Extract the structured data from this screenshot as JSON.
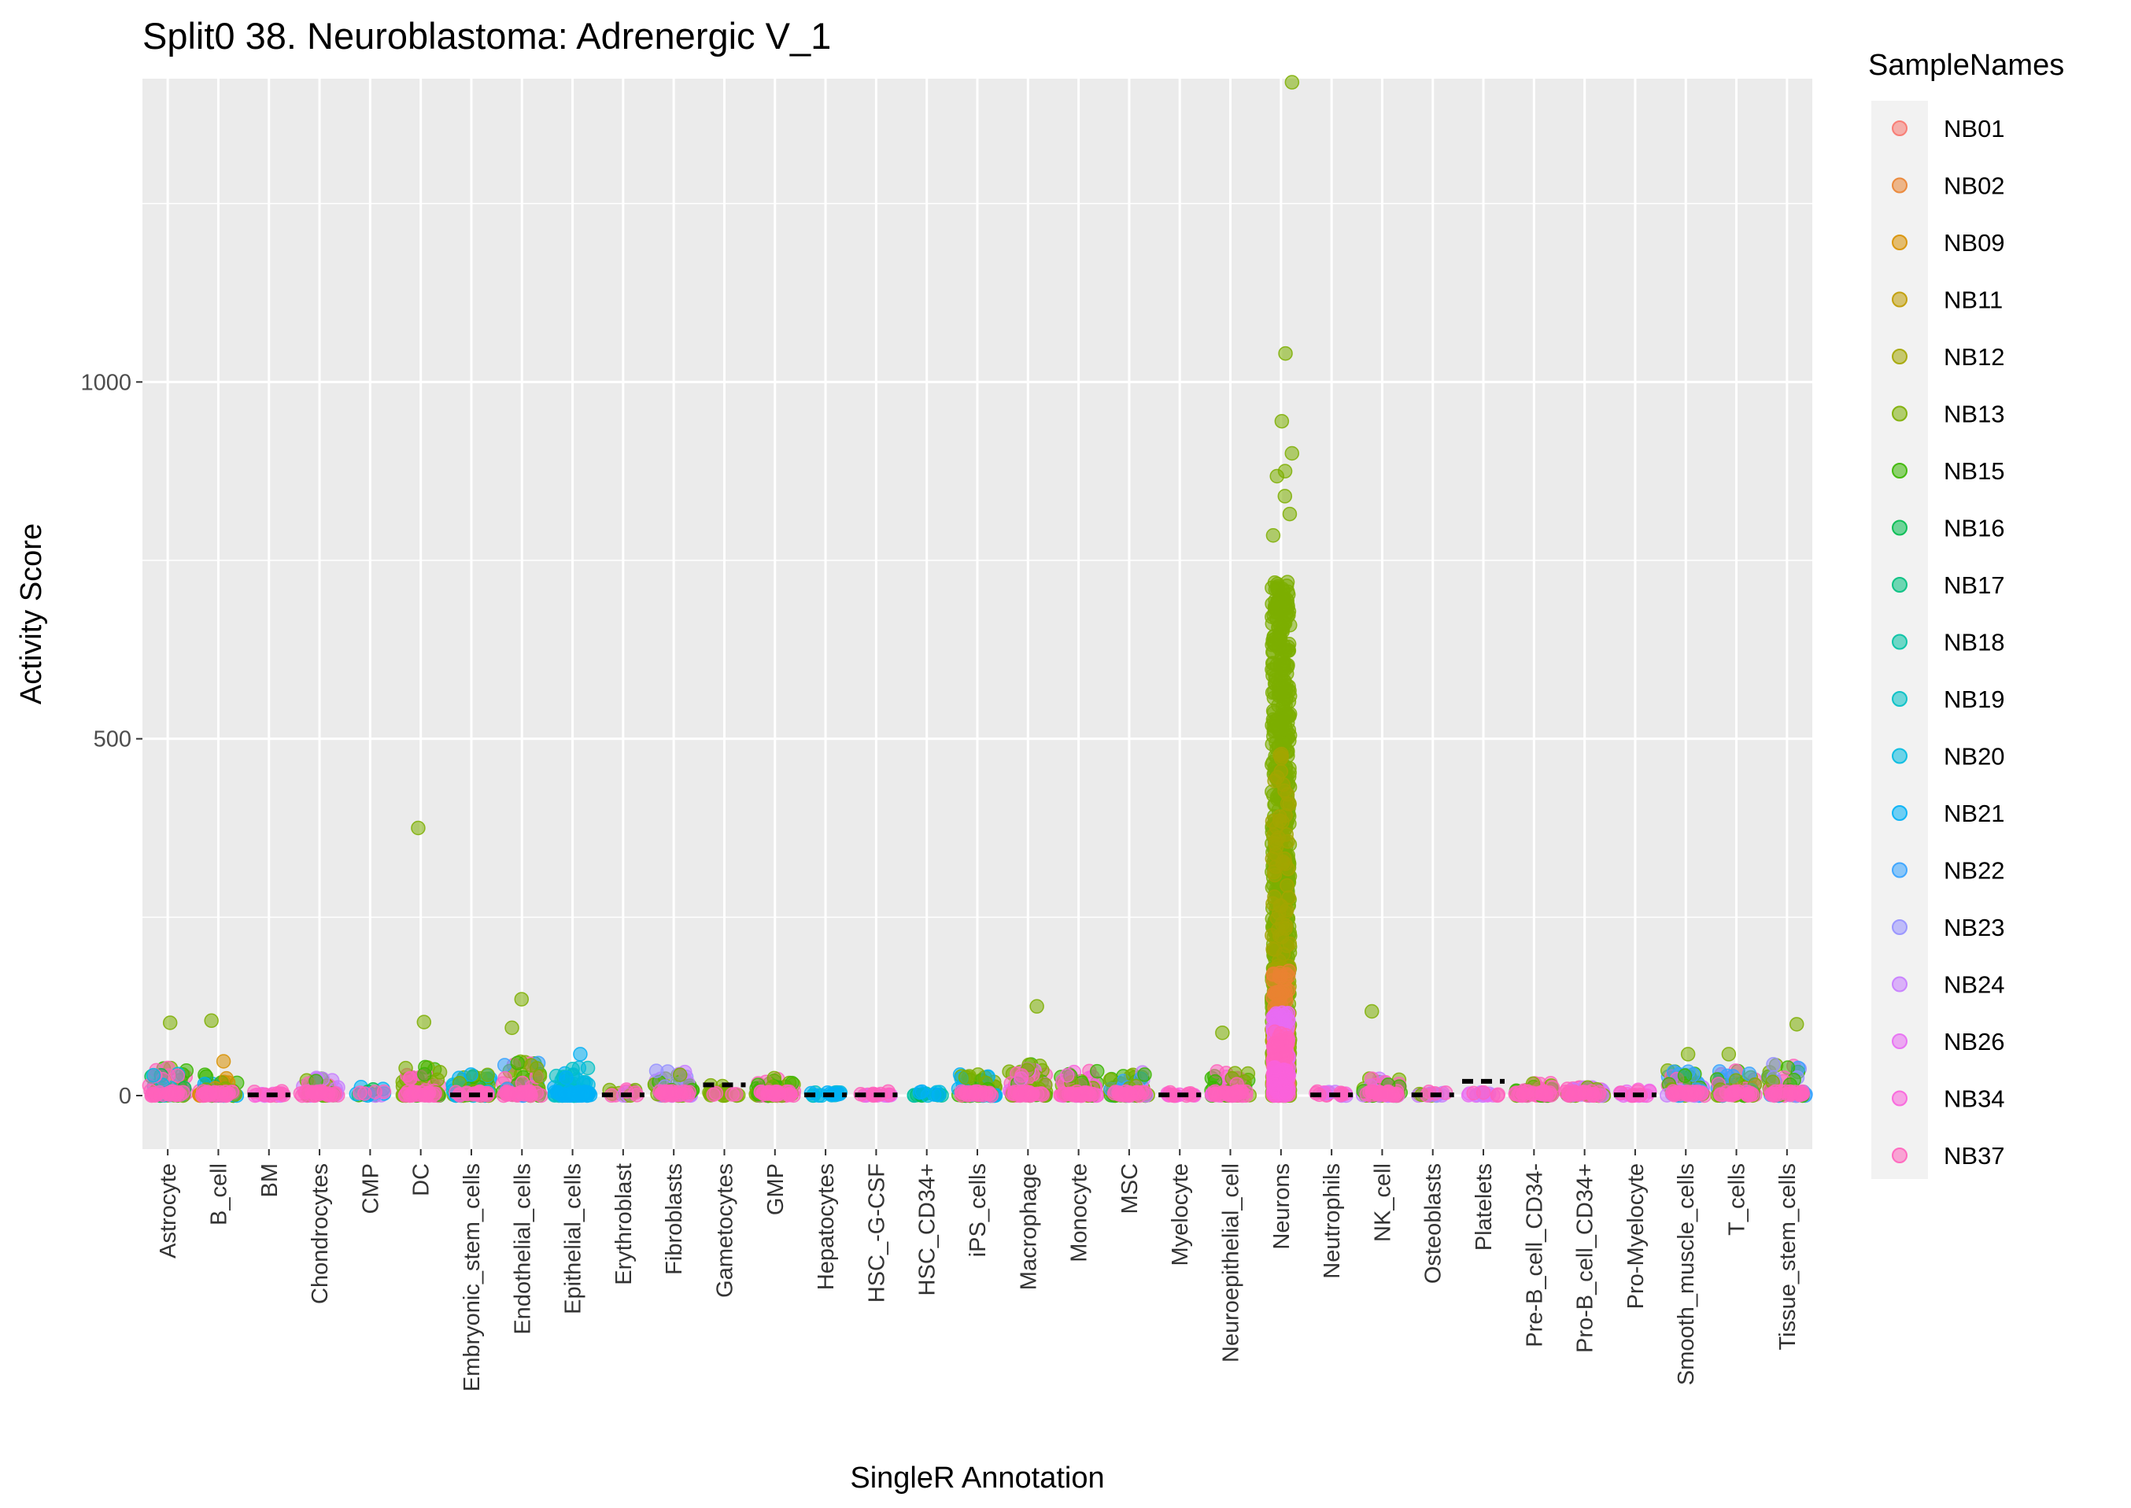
{
  "chart_data": {
    "type": "scatter",
    "title": "Split0 38. Neuroblastoma: Adrenergic V_1",
    "xlabel": "SingleR Annotation",
    "ylabel": "Activity Score",
    "ylim": [
      -75,
      1425
    ],
    "yticks": [
      0,
      500,
      1000
    ],
    "ytick_labels": [
      "0",
      "500",
      "1000"
    ],
    "grid": true,
    "legend_position": "right",
    "legend_title": "SampleNames",
    "categories": [
      "Astrocyte",
      "B_cell",
      "BM",
      "Chondrocytes",
      "CMP",
      "DC",
      "Embryonic_stem_cells",
      "Endothelial_cells",
      "Epithelial_cells",
      "Erythroblast",
      "Fibroblasts",
      "Gametocytes",
      "GMP",
      "Hepatocytes",
      "HSC_-G-CSF",
      "HSC_CD34+",
      "iPS_cells",
      "Macrophage",
      "Monocyte",
      "MSC",
      "Myelocyte",
      "Neuroepithelial_cell",
      "Neurons",
      "Neutrophils",
      "NK_cell",
      "Osteoblasts",
      "Platelets",
      "Pre-B_cell_CD34-",
      "Pro-B_cell_CD34+",
      "Pro-Myelocyte",
      "Smooth_muscle_cells",
      "T_cells",
      "Tissue_stem_cells"
    ],
    "series": [
      {
        "name": "NB01",
        "color": "#F8766D"
      },
      {
        "name": "NB02",
        "color": "#EA8331"
      },
      {
        "name": "NB09",
        "color": "#D89000"
      },
      {
        "name": "NB11",
        "color": "#C09B00"
      },
      {
        "name": "NB12",
        "color": "#A3A500"
      },
      {
        "name": "NB13",
        "color": "#7CAE00"
      },
      {
        "name": "NB15",
        "color": "#39B600"
      },
      {
        "name": "NB16",
        "color": "#00BB4E"
      },
      {
        "name": "NB17",
        "color": "#00BF7D"
      },
      {
        "name": "NB18",
        "color": "#00C1A3"
      },
      {
        "name": "NB19",
        "color": "#00BFC4"
      },
      {
        "name": "NB20",
        "color": "#00BAE0"
      },
      {
        "name": "NB21",
        "color": "#00B0F6"
      },
      {
        "name": "NB22",
        "color": "#35A2FF"
      },
      {
        "name": "NB23",
        "color": "#9590FF"
      },
      {
        "name": "NB24",
        "color": "#C77CFF"
      },
      {
        "name": "NB26",
        "color": "#E76BF3"
      },
      {
        "name": "NB34",
        "color": "#FA62DB"
      },
      {
        "name": "NB37",
        "color": "#FF62BC"
      }
    ],
    "notable_points": [
      {
        "category": "Neurons",
        "series": "NB13",
        "y": 1420
      },
      {
        "category": "Neurons",
        "series": "NB13",
        "y": 1040
      },
      {
        "category": "Neurons",
        "series": "NB13",
        "y": 945
      },
      {
        "category": "Neurons",
        "series": "NB13",
        "y": 900
      },
      {
        "category": "Neurons",
        "series": "NB13",
        "y": 875
      },
      {
        "category": "Neurons",
        "series": "NB13",
        "y": 868
      },
      {
        "category": "Neurons",
        "series": "NB13",
        "y": 840
      },
      {
        "category": "Neurons",
        "series": "NB13",
        "y": 815
      },
      {
        "category": "Neurons",
        "series": "NB13",
        "y": 785
      },
      {
        "category": "DC",
        "series": "NB13",
        "y": 375
      },
      {
        "category": "Endothelial_cells",
        "series": "NB13",
        "y": 135
      },
      {
        "category": "Macrophage",
        "series": "NB13",
        "y": 125
      },
      {
        "category": "NK_cell",
        "series": "NB13",
        "y": 118
      },
      {
        "category": "B_cell",
        "series": "NB13",
        "y": 105
      },
      {
        "category": "DC",
        "series": "NB13",
        "y": 103
      },
      {
        "category": "Astrocyte",
        "series": "NB13",
        "y": 102
      },
      {
        "category": "Tissue_stem_cells",
        "series": "NB13",
        "y": 100
      },
      {
        "category": "Endothelial_cells",
        "series": "NB13",
        "y": 95
      },
      {
        "category": "Neuroepithelial_cell",
        "series": "NB13",
        "y": 88
      },
      {
        "category": "Epithelial_cells",
        "series": "NB21",
        "y": 58
      },
      {
        "category": "Smooth_muscle_cells",
        "series": "NB13",
        "y": 58
      },
      {
        "category": "T_cells",
        "series": "NB13",
        "y": 58
      },
      {
        "category": "B_cell",
        "series": "NB09",
        "y": 48
      }
    ]
  }
}
